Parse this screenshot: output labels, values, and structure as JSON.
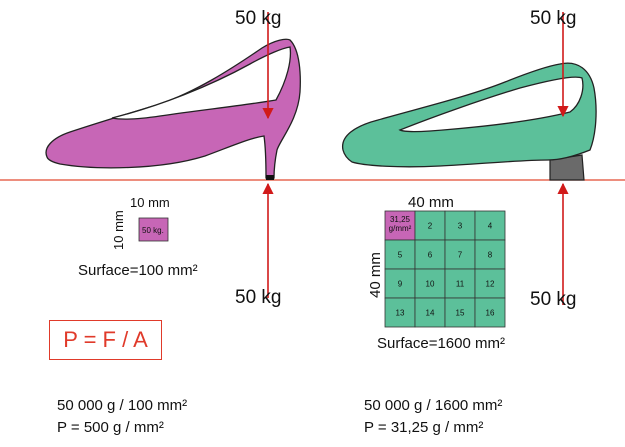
{
  "left": {
    "force_top": "50 kg",
    "force_bottom": "50 kg",
    "width_label": "10 mm",
    "height_label": "10 mm",
    "square_label": "50 kg.",
    "surface": "Surface=100 mm²",
    "calc_line1": "50 000 g / 100 mm²",
    "calc_line2": "P = 500 g / mm²",
    "shoe_color": "#c766b6"
  },
  "right": {
    "force_top": "50 kg",
    "force_bottom": "50 kg",
    "width_label": "40 mm",
    "height_label": "40 mm",
    "first_cell_label": "31,25 g/mm²",
    "cells": [
      "2",
      "3",
      "4",
      "5",
      "6",
      "7",
      "8",
      "9",
      "10",
      "11",
      "12",
      "13",
      "14",
      "15",
      "16"
    ],
    "surface": "Surface=1600 mm²",
    "calc_line1": "50 000 g / 1600 mm²",
    "calc_line2": "P = 31,25 g / mm²",
    "shoe_color": "#5cc09a",
    "heel_color": "#6a6a6a"
  },
  "formula": "P = F / A",
  "colors": {
    "ground_line": "#e24a30",
    "arrow": "#d11a1a",
    "outline": "#222222",
    "formula_border": "#e03a2a"
  }
}
